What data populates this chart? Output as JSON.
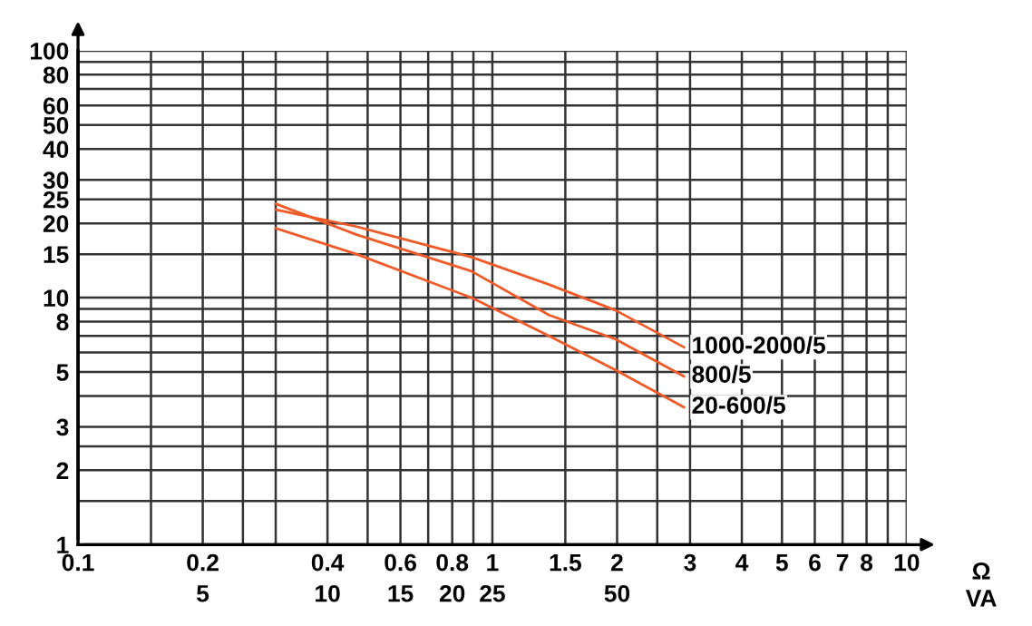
{
  "chart_data": {
    "type": "line",
    "xlabel": "Ω",
    "annotations": [
      "VA"
    ],
    "log": "xy",
    "xlim": [
      0.1,
      10
    ],
    "ylim": [
      1,
      100
    ],
    "xticks": [
      0.1,
      {
        "value": 0.15,
        "label": null
      },
      {
        "value": 0.2,
        "label": "0.2\n5"
      },
      {
        "value": 0.25,
        "label": null
      },
      {
        "value": 0.3,
        "label": null
      },
      {
        "value": 0.4,
        "label": "0.4\n10"
      },
      {
        "value": 0.5,
        "label": null
      },
      {
        "value": 0.6,
        "label": "0.6\n15"
      },
      {
        "value": 0.7,
        "label": null
      },
      {
        "value": 0.8,
        "label": "0.8\n20"
      },
      {
        "value": 0.9,
        "label": null
      },
      {
        "value": 1,
        "label": "1\n25"
      },
      1.5,
      {
        "value": 2,
        "label": "2\n50"
      },
      {
        "value": 2.5,
        "label": null
      },
      3,
      4,
      5,
      6,
      7,
      8,
      {
        "value": 9,
        "label": null
      },
      10
    ],
    "yticks": [
      1,
      {
        "value": 1.5,
        "label": null
      },
      2,
      {
        "value": 2.5,
        "label": null
      },
      3,
      {
        "value": 4,
        "label": null
      },
      5,
      {
        "value": 6,
        "label": null
      },
      {
        "value": 7,
        "label": null
      },
      8,
      {
        "value": 9,
        "label": null
      },
      10,
      15,
      20,
      25,
      30,
      40,
      50,
      60,
      {
        "value": 70,
        "label": null
      },
      80,
      {
        "value": 90,
        "label": null
      },
      100
    ],
    "grid": true,
    "marker": "none",
    "line_style": "solid",
    "legend": false,
    "series": [
      {
        "name": "1000-2000/5",
        "color": "#f05a28",
        "x": [
          0.3,
          0.47,
          0.89,
          1.37,
          1.98,
          2.9
        ],
        "values": [
          22.7,
          19.4,
          14.6,
          11.3,
          8.9,
          6.3
        ]
      },
      {
        "name": "800/5",
        "color": "#f05a28",
        "x": [
          0.3,
          0.47,
          0.89,
          1.37,
          1.98,
          2.9
        ],
        "values": [
          24,
          18,
          12.8,
          8.5,
          6.8,
          4.8
        ]
      },
      {
        "name": "20-600/5",
        "color": "#f05a28",
        "x": [
          0.3,
          0.47,
          0.89,
          1.37,
          1.98,
          2.9
        ],
        "values": [
          19.1,
          15,
          10,
          7,
          5.1,
          3.6
        ]
      }
    ]
  }
}
